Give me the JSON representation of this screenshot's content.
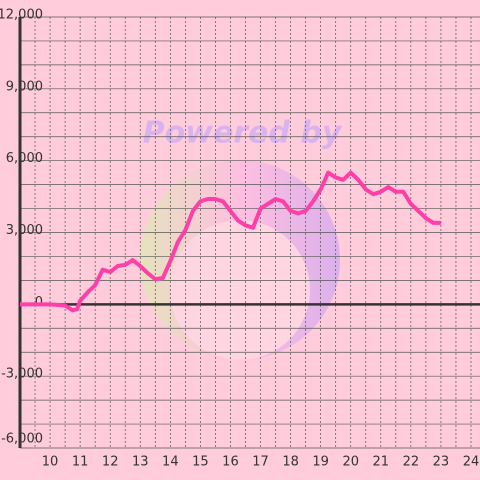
{
  "chart_data": {
    "type": "line",
    "watermark": "Powered by",
    "x": [
      9,
      9.5,
      10,
      10.5,
      10.75,
      10.9,
      11,
      11.25,
      11.5,
      11.75,
      12,
      12.25,
      12.5,
      12.75,
      13,
      13.25,
      13.5,
      13.75,
      14,
      14.25,
      14.5,
      14.75,
      15,
      15.25,
      15.5,
      15.75,
      16,
      16.25,
      16.5,
      16.75,
      17,
      17.25,
      17.5,
      17.75,
      18,
      18.25,
      18.5,
      18.75,
      19,
      19.25,
      19.5,
      19.75,
      20,
      20.25,
      20.5,
      20.75,
      21,
      21.25,
      21.5,
      21.75,
      22,
      22.25,
      22.5,
      22.75,
      23
    ],
    "series": [
      {
        "color": "#ff3fa8",
        "values": [
          0,
          0,
          0,
          -50,
          -250,
          -200,
          150,
          500,
          800,
          1450,
          1350,
          1600,
          1650,
          1850,
          1600,
          1300,
          1050,
          1100,
          1800,
          2600,
          3100,
          3900,
          4300,
          4400,
          4400,
          4300,
          3900,
          3500,
          3300,
          3200,
          4000,
          4200,
          4400,
          4300,
          3900,
          3800,
          3900,
          4300,
          4800,
          5500,
          5300,
          5200,
          5500,
          5200,
          4800,
          4600,
          4700,
          4900,
          4700,
          4700,
          4200,
          3900,
          3600,
          3400,
          3400
        ]
      }
    ],
    "xlim": [
      9,
      24.3
    ],
    "ylim": [
      -6000,
      12000
    ],
    "xticks": [
      10,
      11,
      12,
      13,
      14,
      15,
      16,
      17,
      18,
      19,
      20,
      21,
      22,
      23,
      24
    ],
    "yticks": [
      {
        "value": -6000,
        "label": "-6,000"
      },
      {
        "value": -3000,
        "label": "-3,000"
      },
      0,
      {
        "value": 3000,
        "label": "3,000"
      },
      {
        "value": 6000,
        "label": "6,000"
      },
      {
        "value": 9000,
        "label": "9,000"
      },
      {
        "value": 12000,
        "label": "12,000"
      }
    ],
    "ygrid": [
      -5000,
      -4000,
      -2000,
      -1000,
      1000,
      2000,
      4000,
      5000,
      7000,
      8000,
      10000,
      11000
    ],
    "xgrid": [
      9.5,
      10.5,
      11.5,
      12.5,
      13.5,
      14.5,
      15.5,
      16.5,
      17.5,
      18.5,
      19.5,
      20.5,
      21.5,
      22.5,
      23.5
    ]
  }
}
